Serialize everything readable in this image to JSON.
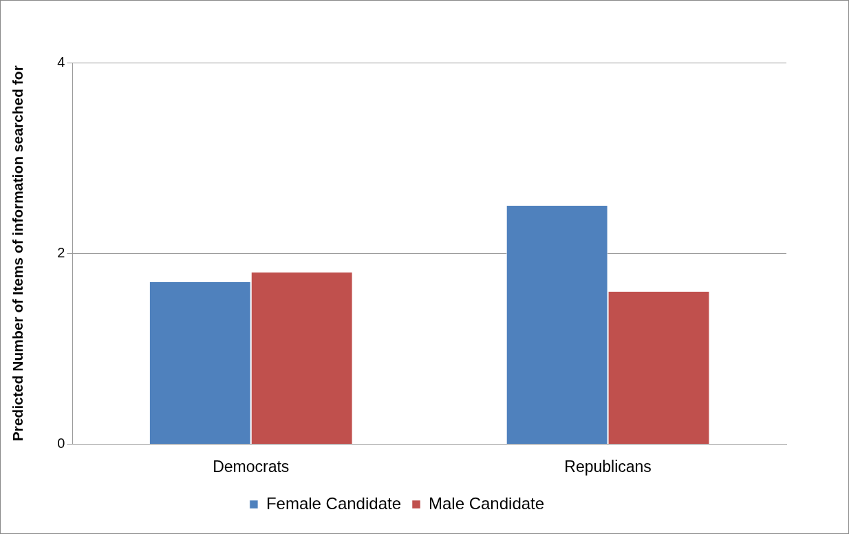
{
  "chart_data": {
    "type": "bar",
    "ylabel": "Predicted Number of Items of information searched for",
    "categories": [
      "Democrats",
      "Republicans"
    ],
    "series": [
      {
        "name": "Female Candidate",
        "color": "#4f81bd",
        "values": [
          1.7,
          2.5
        ]
      },
      {
        "name": "Male Candidate",
        "color": "#c0504d",
        "values": [
          1.8,
          1.6
        ]
      }
    ],
    "ylim": [
      0,
      4
    ],
    "yticks": [
      0,
      2,
      4
    ],
    "grid": "y",
    "legend": "bottom"
  }
}
